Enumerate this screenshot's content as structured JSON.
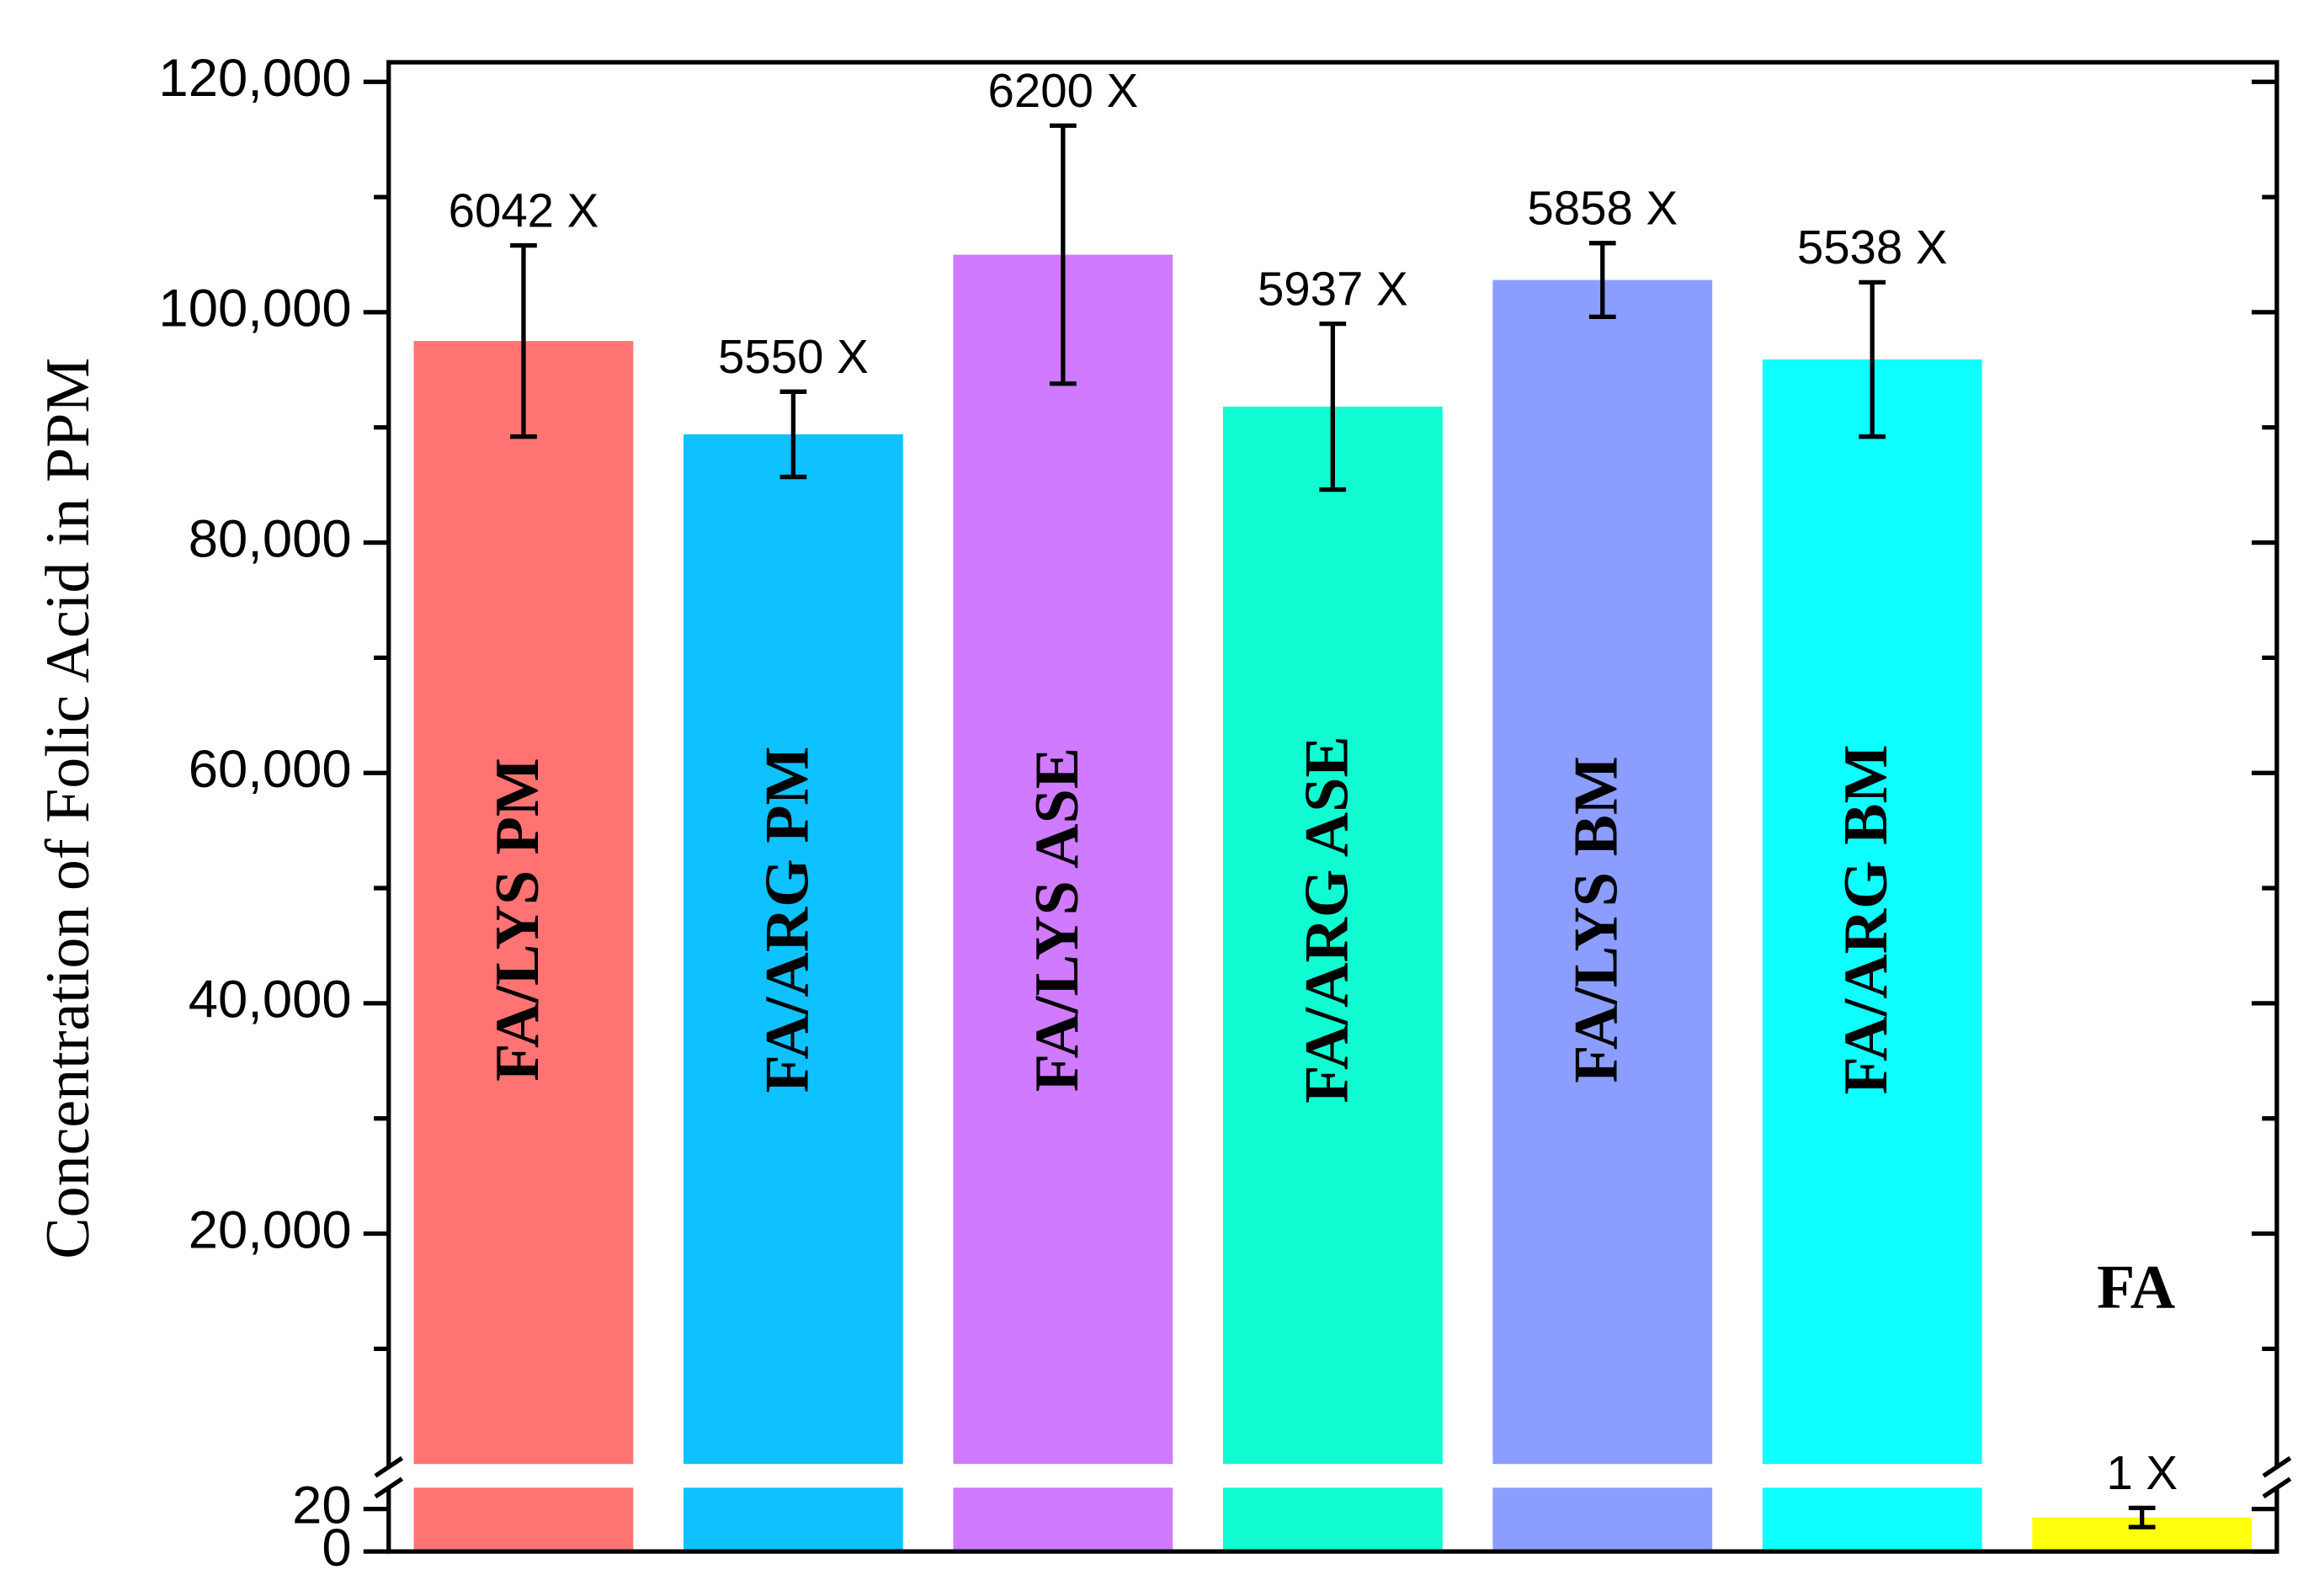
{
  "chart_data": {
    "type": "bar",
    "y_label": "Concentration of Folic Acid in PPM",
    "categories": [
      "FA/LYS PM",
      "FA/ARG PM",
      "FA/LYS ASE",
      "FA/ARG ASE",
      "FA/LYS BM",
      "FA/ARG BM",
      "FA"
    ],
    "values": [
      97500,
      89400,
      105000,
      91800,
      102800,
      95900,
      16
    ],
    "errors": [
      8300,
      3700,
      11200,
      7200,
      3200,
      6700,
      4.5
    ],
    "annotations": [
      "6042 X",
      "5550 X",
      "6200 X",
      "5937 X",
      "5858 X",
      "5538 X",
      "1 X"
    ],
    "colors": [
      "#ff6b6b",
      "#00bfff",
      "#cc73ff",
      "#03fbd0",
      "#8599ff",
      "#00ffff",
      "#ffff00"
    ],
    "ylim": [
      0,
      121700
    ],
    "yticks": [
      {
        "value": 20000,
        "label": "20,000"
      },
      {
        "value": 40000,
        "label": "40,000"
      },
      {
        "value": 60000,
        "label": "60,000"
      },
      {
        "value": 80000,
        "label": "80,000"
      },
      {
        "value": 100000,
        "label": "100,000"
      },
      {
        "value": 120000,
        "label": "120,000"
      }
    ],
    "ylim_lower": [
      0,
      30
    ],
    "yticks_lower": [
      0,
      20
    ]
  }
}
